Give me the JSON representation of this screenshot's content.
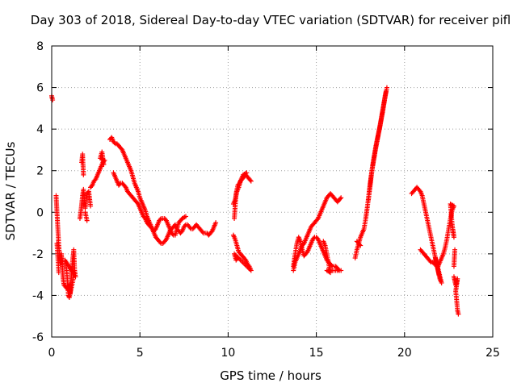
{
  "chart_data": {
    "type": "scatter",
    "title": "Day 303 of 2018, Sidereal Day-to-day VTEC variation (SDTVAR) for receiver pifl",
    "xlabel": "GPS time / hours",
    "ylabel": "SDTVAR / TECUs",
    "xlim": [
      0,
      25
    ],
    "ylim": [
      -6,
      8
    ],
    "xticks": [
      "0",
      "5",
      "10",
      "15",
      "20",
      "25"
    ],
    "yticks": [
      "-6",
      "-4",
      "-2",
      "0",
      "2",
      "4",
      "6",
      "8"
    ],
    "grid": true,
    "marker": "+",
    "series_color": "#ff0000",
    "segments": [
      [
        [
          0.0,
          5.6
        ],
        [
          0.05,
          5.4
        ]
      ],
      [
        [
          0.25,
          0.8
        ],
        [
          0.3,
          0.0
        ],
        [
          0.35,
          -0.8
        ],
        [
          0.4,
          -1.6
        ],
        [
          0.45,
          -2.2
        ],
        [
          0.5,
          -2.5
        ],
        [
          0.55,
          -2.0
        ],
        [
          0.6,
          -2.6
        ],
        [
          0.65,
          -3.2
        ],
        [
          0.7,
          -3.5
        ],
        [
          0.8,
          -3.6
        ],
        [
          0.9,
          -3.7
        ],
        [
          1.0,
          -3.5
        ],
        [
          1.05,
          -3.9
        ],
        [
          1.1,
          -3.2
        ],
        [
          1.15,
          -2.6
        ],
        [
          1.2,
          -2.2
        ],
        [
          1.25,
          -1.8
        ],
        [
          1.3,
          -2.8
        ],
        [
          1.35,
          -3.1
        ],
        [
          0.75,
          -2.3
        ],
        [
          0.85,
          -2.8
        ],
        [
          0.95,
          -4.0
        ],
        [
          1.0,
          -4.1
        ],
        [
          1.2,
          -3.3
        ],
        [
          1.25,
          -2.9
        ],
        [
          0.3,
          -1.5
        ],
        [
          0.4,
          -2.9
        ]
      ],
      [
        [
          1.6,
          -0.3
        ],
        [
          1.65,
          0.0
        ],
        [
          1.7,
          0.4
        ],
        [
          1.75,
          0.8
        ],
        [
          1.8,
          1.1
        ],
        [
          1.85,
          0.5
        ],
        [
          1.9,
          0.2
        ],
        [
          2.0,
          0.9
        ],
        [
          2.1,
          1.0
        ],
        [
          2.2,
          0.3
        ],
        [
          1.7,
          2.4
        ],
        [
          1.75,
          2.8
        ],
        [
          1.8,
          1.8
        ],
        [
          1.9,
          0.0
        ],
        [
          2.0,
          -0.4
        ]
      ],
      [
        [
          2.2,
          1.2
        ],
        [
          2.3,
          1.3
        ],
        [
          2.4,
          1.5
        ],
        [
          2.5,
          1.6
        ],
        [
          2.6,
          1.8
        ],
        [
          2.7,
          2.0
        ],
        [
          2.8,
          2.2
        ],
        [
          2.9,
          2.4
        ],
        [
          3.0,
          2.5
        ],
        [
          2.75,
          2.6
        ],
        [
          2.85,
          2.9
        ],
        [
          2.95,
          2.3
        ]
      ],
      [
        [
          3.3,
          3.5
        ],
        [
          3.4,
          3.6
        ],
        [
          3.5,
          3.4
        ],
        [
          3.6,
          3.3
        ],
        [
          3.7,
          3.3
        ],
        [
          3.8,
          3.2
        ],
        [
          3.9,
          3.1
        ],
        [
          4.0,
          3.0
        ],
        [
          4.1,
          2.8
        ],
        [
          4.2,
          2.6
        ],
        [
          4.3,
          2.4
        ],
        [
          4.4,
          2.2
        ],
        [
          4.5,
          2.0
        ],
        [
          4.6,
          1.7
        ],
        [
          4.7,
          1.4
        ],
        [
          4.8,
          1.2
        ],
        [
          4.9,
          1.0
        ],
        [
          5.0,
          0.7
        ],
        [
          5.1,
          0.5
        ],
        [
          5.2,
          0.3
        ],
        [
          5.3,
          0.1
        ],
        [
          5.4,
          -0.2
        ],
        [
          5.5,
          -0.4
        ],
        [
          5.6,
          -0.6
        ],
        [
          5.7,
          -0.8
        ],
        [
          5.8,
          -1.0
        ],
        [
          5.9,
          -1.2
        ],
        [
          6.0,
          -1.3
        ],
        [
          6.1,
          -1.4
        ],
        [
          6.2,
          -1.5
        ],
        [
          6.3,
          -1.5
        ],
        [
          6.4,
          -1.4
        ],
        [
          6.5,
          -1.3
        ],
        [
          6.6,
          -1.1
        ],
        [
          6.7,
          -0.9
        ],
        [
          6.8,
          -0.8
        ],
        [
          6.9,
          -0.7
        ],
        [
          7.0,
          -0.6
        ],
        [
          7.1,
          -0.8
        ],
        [
          7.2,
          -0.9
        ],
        [
          7.3,
          -1.0
        ],
        [
          7.4,
          -0.9
        ],
        [
          7.5,
          -0.7
        ],
        [
          7.6,
          -0.6
        ],
        [
          7.7,
          -0.6
        ],
        [
          7.8,
          -0.7
        ],
        [
          7.9,
          -0.8
        ],
        [
          8.0,
          -0.8
        ],
        [
          8.1,
          -0.7
        ],
        [
          8.2,
          -0.6
        ],
        [
          8.3,
          -0.7
        ],
        [
          8.4,
          -0.8
        ],
        [
          8.5,
          -0.9
        ],
        [
          8.6,
          -1.0
        ],
        [
          8.7,
          -1.0
        ],
        [
          8.8,
          -1.0
        ],
        [
          8.9,
          -1.1
        ],
        [
          9.0,
          -1.0
        ],
        [
          9.1,
          -0.9
        ],
        [
          9.2,
          -0.7
        ],
        [
          9.3,
          -0.5
        ]
      ],
      [
        [
          3.5,
          1.9
        ],
        [
          3.6,
          1.7
        ],
        [
          3.7,
          1.5
        ],
        [
          3.8,
          1.3
        ],
        [
          3.9,
          1.4
        ],
        [
          4.0,
          1.4
        ],
        [
          4.1,
          1.3
        ],
        [
          4.2,
          1.2
        ],
        [
          4.3,
          1.0
        ],
        [
          4.4,
          0.9
        ],
        [
          4.5,
          0.8
        ],
        [
          4.6,
          0.7
        ],
        [
          4.7,
          0.6
        ],
        [
          4.8,
          0.5
        ],
        [
          4.9,
          0.4
        ],
        [
          5.0,
          0.2
        ],
        [
          5.1,
          0.0
        ],
        [
          5.2,
          -0.2
        ],
        [
          5.3,
          -0.3
        ],
        [
          5.4,
          -0.5
        ],
        [
          5.5,
          -0.6
        ],
        [
          5.6,
          -0.7
        ],
        [
          5.7,
          -0.8
        ],
        [
          5.8,
          -0.9
        ],
        [
          5.9,
          -0.8
        ],
        [
          6.0,
          -0.6
        ],
        [
          6.1,
          -0.4
        ],
        [
          6.2,
          -0.3
        ],
        [
          6.3,
          -0.3
        ],
        [
          6.4,
          -0.3
        ],
        [
          6.5,
          -0.4
        ],
        [
          6.6,
          -0.6
        ],
        [
          6.7,
          -0.8
        ],
        [
          6.8,
          -1.0
        ],
        [
          6.9,
          -1.1
        ],
        [
          7.0,
          -1.1
        ],
        [
          7.2,
          -0.5
        ],
        [
          7.4,
          -0.3
        ],
        [
          7.6,
          -0.2
        ]
      ],
      [
        [
          10.3,
          0.4
        ],
        [
          10.4,
          0.6
        ],
        [
          10.5,
          1.0
        ],
        [
          10.6,
          1.2
        ],
        [
          10.7,
          1.5
        ],
        [
          10.8,
          1.6
        ],
        [
          10.9,
          1.7
        ],
        [
          11.0,
          1.8
        ],
        [
          11.1,
          1.7
        ],
        [
          11.2,
          1.6
        ],
        [
          11.3,
          1.5
        ],
        [
          10.35,
          -0.3
        ],
        [
          10.45,
          0.9
        ],
        [
          10.55,
          1.3
        ],
        [
          10.65,
          1.4
        ],
        [
          10.85,
          1.8
        ],
        [
          11.05,
          1.9
        ]
      ],
      [
        [
          10.3,
          -1.1
        ],
        [
          10.4,
          -1.3
        ],
        [
          10.5,
          -1.6
        ],
        [
          10.6,
          -1.9
        ],
        [
          10.7,
          -2.0
        ],
        [
          10.8,
          -2.1
        ],
        [
          10.9,
          -2.2
        ],
        [
          11.0,
          -2.3
        ],
        [
          11.1,
          -2.5
        ],
        [
          11.2,
          -2.6
        ],
        [
          11.3,
          -2.8
        ],
        [
          10.35,
          -2.0
        ],
        [
          10.45,
          -2.3
        ],
        [
          10.55,
          -2.2
        ]
      ],
      [
        [
          13.7,
          -2.8
        ],
        [
          13.8,
          -2.4
        ],
        [
          13.9,
          -2.2
        ],
        [
          14.0,
          -2.0
        ],
        [
          14.1,
          -1.8
        ],
        [
          14.2,
          -1.6
        ],
        [
          14.3,
          -1.5
        ],
        [
          14.4,
          -1.3
        ],
        [
          14.5,
          -1.1
        ],
        [
          14.6,
          -0.9
        ],
        [
          14.7,
          -0.7
        ],
        [
          14.8,
          -0.6
        ],
        [
          14.9,
          -0.5
        ],
        [
          15.0,
          -0.4
        ],
        [
          15.1,
          -0.3
        ],
        [
          15.2,
          -0.1
        ],
        [
          15.3,
          0.1
        ],
        [
          15.4,
          0.3
        ],
        [
          15.5,
          0.5
        ],
        [
          15.6,
          0.7
        ],
        [
          15.7,
          0.8
        ],
        [
          15.8,
          0.9
        ],
        [
          15.9,
          0.8
        ],
        [
          16.0,
          0.7
        ],
        [
          16.1,
          0.6
        ],
        [
          16.2,
          0.5
        ],
        [
          16.3,
          0.6
        ],
        [
          16.4,
          0.7
        ]
      ],
      [
        [
          13.7,
          -2.6
        ],
        [
          13.8,
          -2.0
        ],
        [
          13.9,
          -1.5
        ],
        [
          14.0,
          -1.2
        ],
        [
          14.1,
          -1.4
        ],
        [
          14.2,
          -1.8
        ],
        [
          14.3,
          -2.1
        ],
        [
          14.4,
          -2.0
        ],
        [
          14.5,
          -1.9
        ],
        [
          14.6,
          -1.7
        ],
        [
          14.7,
          -1.5
        ],
        [
          14.8,
          -1.3
        ],
        [
          14.9,
          -1.2
        ],
        [
          15.0,
          -1.2
        ],
        [
          15.1,
          -1.3
        ],
        [
          15.2,
          -1.5
        ],
        [
          15.3,
          -1.7
        ],
        [
          15.4,
          -1.9
        ],
        [
          15.5,
          -2.1
        ],
        [
          15.6,
          -2.3
        ],
        [
          15.7,
          -2.4
        ],
        [
          15.8,
          -2.5
        ],
        [
          15.9,
          -2.6
        ],
        [
          16.0,
          -2.6
        ],
        [
          16.1,
          -2.6
        ],
        [
          16.2,
          -2.7
        ],
        [
          16.3,
          -2.8
        ],
        [
          16.4,
          -2.8
        ],
        [
          15.6,
          -2.8
        ],
        [
          15.8,
          -2.9
        ],
        [
          15.5,
          -1.6
        ],
        [
          15.4,
          -1.4
        ]
      ],
      [
        [
          17.2,
          -2.2
        ],
        [
          17.3,
          -1.8
        ],
        [
          17.4,
          -1.5
        ],
        [
          17.5,
          -1.2
        ],
        [
          17.6,
          -1.0
        ],
        [
          17.7,
          -0.8
        ],
        [
          17.8,
          -0.3
        ],
        [
          17.9,
          0.3
        ],
        [
          18.0,
          1.0
        ],
        [
          18.1,
          1.7
        ],
        [
          18.2,
          2.3
        ],
        [
          18.3,
          2.8
        ],
        [
          18.4,
          3.3
        ],
        [
          18.5,
          3.7
        ],
        [
          18.6,
          4.1
        ],
        [
          18.7,
          4.6
        ],
        [
          18.8,
          5.1
        ],
        [
          18.9,
          5.6
        ],
        [
          19.0,
          6.0
        ],
        [
          17.3,
          -1.4
        ],
        [
          17.5,
          -1.6
        ],
        [
          17.95,
          0.6
        ],
        [
          18.15,
          2.0
        ],
        [
          18.35,
          3.0
        ],
        [
          18.55,
          3.9
        ],
        [
          18.75,
          4.8
        ],
        [
          18.95,
          5.8
        ]
      ],
      [
        [
          20.4,
          0.9
        ],
        [
          20.5,
          1.0
        ],
        [
          20.6,
          1.1
        ],
        [
          20.7,
          1.2
        ],
        [
          20.8,
          1.1
        ],
        [
          20.9,
          1.0
        ],
        [
          21.0,
          0.8
        ],
        [
          21.1,
          0.4
        ],
        [
          21.2,
          0.0
        ],
        [
          21.3,
          -0.4
        ],
        [
          21.4,
          -0.8
        ],
        [
          21.5,
          -1.2
        ],
        [
          21.6,
          -1.6
        ],
        [
          21.7,
          -2.0
        ],
        [
          21.8,
          -2.4
        ],
        [
          21.9,
          -2.8
        ],
        [
          22.0,
          -3.2
        ],
        [
          22.1,
          -3.4
        ],
        [
          21.75,
          -2.2
        ],
        [
          21.95,
          -3.0
        ]
      ],
      [
        [
          20.9,
          -1.8
        ],
        [
          21.0,
          -1.9
        ],
        [
          21.1,
          -2.0
        ],
        [
          21.2,
          -2.1
        ],
        [
          21.3,
          -2.2
        ],
        [
          21.4,
          -2.3
        ],
        [
          21.5,
          -2.4
        ],
        [
          21.6,
          -2.4
        ],
        [
          21.7,
          -2.5
        ],
        [
          21.8,
          -2.5
        ],
        [
          21.9,
          -2.6
        ],
        [
          22.0,
          -2.4
        ],
        [
          22.1,
          -2.2
        ],
        [
          22.2,
          -2.0
        ],
        [
          22.3,
          -1.7
        ],
        [
          22.4,
          -1.3
        ],
        [
          22.5,
          -0.8
        ],
        [
          22.6,
          -0.3
        ],
        [
          22.7,
          0.1
        ],
        [
          22.8,
          0.3
        ],
        [
          22.6,
          0.4
        ],
        [
          22.7,
          -0.6
        ],
        [
          22.8,
          -1.2
        ],
        [
          22.75,
          -0.9
        ]
      ],
      [
        [
          22.8,
          -3.1
        ],
        [
          22.85,
          -3.3
        ],
        [
          22.9,
          -3.5
        ],
        [
          22.95,
          -3.4
        ],
        [
          23.0,
          -3.2
        ],
        [
          22.9,
          -3.8
        ],
        [
          22.95,
          -4.2
        ],
        [
          23.0,
          -4.7
        ],
        [
          23.05,
          -4.9
        ],
        [
          22.8,
          -2.6
        ],
        [
          22.85,
          -1.8
        ]
      ]
    ]
  }
}
